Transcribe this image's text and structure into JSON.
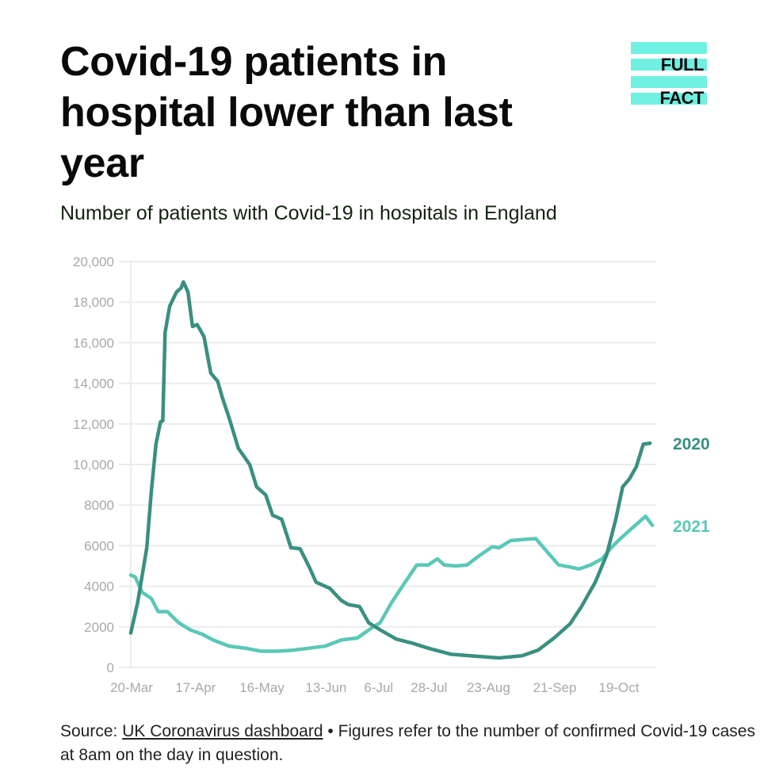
{
  "header": {
    "title": "Covid-19 patients in hospital lower than last year",
    "subtitle": "Number of patients with Covid-19 in hospitals in England"
  },
  "logo": {
    "line1": "FULL",
    "line2": "FACT",
    "color": "#6ff0e1"
  },
  "footer": {
    "source_prefix": "Source: ",
    "source_link": "UK Coronavirus dashboard",
    "bullet": " • ",
    "note": "Figures refer to the number of confirmed Covid-19 cases at 8am on the day in question."
  },
  "chart_data": {
    "type": "line",
    "title": "Number of patients with Covid-19 in hospitals in England",
    "xlabel": "",
    "ylabel": "",
    "x_unit": "days since 20-Mar",
    "xlim": [
      0,
      228
    ],
    "ylim": [
      0,
      20000
    ],
    "grid": true,
    "legend": "inline-right",
    "yticks": [
      0,
      2000,
      4000,
      6000,
      8000,
      10000,
      12000,
      14000,
      16000,
      18000,
      20000
    ],
    "ytick_labels": [
      "0",
      "2000",
      "4000",
      "6000",
      "8000",
      "10,000",
      "12,000",
      "14,000",
      "16,000",
      "18,000",
      "20,000"
    ],
    "xticks": [
      0,
      28,
      57,
      85,
      108,
      130,
      156,
      185,
      213
    ],
    "xtick_labels": [
      "20-Mar",
      "17-Apr",
      "16-May",
      "13-Jun",
      "6-Jul",
      "28-Jul",
      "23-Aug",
      "21-Sep",
      "19-Oct"
    ],
    "series": [
      {
        "name": "2020",
        "color": "#3a8f80",
        "points": [
          [
            0,
            1700
          ],
          [
            3,
            3200
          ],
          [
            7,
            5900
          ],
          [
            9,
            8700
          ],
          [
            11,
            11000
          ],
          [
            13,
            12100
          ],
          [
            14,
            12150
          ],
          [
            15,
            16500
          ],
          [
            17,
            17800
          ],
          [
            20,
            18500
          ],
          [
            22,
            18700
          ],
          [
            23,
            19000
          ],
          [
            25,
            18500
          ],
          [
            27,
            16800
          ],
          [
            29,
            16900
          ],
          [
            32,
            16300
          ],
          [
            35,
            14500
          ],
          [
            38,
            14100
          ],
          [
            40,
            13300
          ],
          [
            43,
            12300
          ],
          [
            47,
            10800
          ],
          [
            52,
            10000
          ],
          [
            55,
            8900
          ],
          [
            59,
            8500
          ],
          [
            62,
            7500
          ],
          [
            66,
            7300
          ],
          [
            70,
            5900
          ],
          [
            74,
            5850
          ],
          [
            78,
            4950
          ],
          [
            81,
            4200
          ],
          [
            87,
            3900
          ],
          [
            92,
            3300
          ],
          [
            95,
            3100
          ],
          [
            100,
            3000
          ],
          [
            104,
            2200
          ],
          [
            109,
            1850
          ],
          [
            116,
            1400
          ],
          [
            123,
            1200
          ],
          [
            130,
            950
          ],
          [
            140,
            650
          ],
          [
            151,
            550
          ],
          [
            161,
            470
          ],
          [
            171,
            580
          ],
          [
            178,
            850
          ],
          [
            185,
            1450
          ],
          [
            192,
            2150
          ],
          [
            197,
            3000
          ],
          [
            203,
            4200
          ],
          [
            208,
            5550
          ],
          [
            212,
            7300
          ],
          [
            215,
            8900
          ],
          [
            218,
            9300
          ],
          [
            221,
            9900
          ],
          [
            224,
            11000
          ],
          [
            227,
            11050
          ]
        ]
      },
      {
        "name": "2021",
        "color": "#5ac8b6",
        "points": [
          [
            0,
            4550
          ],
          [
            2,
            4450
          ],
          [
            5,
            3700
          ],
          [
            9,
            3400
          ],
          [
            12,
            2750
          ],
          [
            16,
            2750
          ],
          [
            21,
            2200
          ],
          [
            26,
            1850
          ],
          [
            31,
            1650
          ],
          [
            36,
            1350
          ],
          [
            43,
            1050
          ],
          [
            50,
            950
          ],
          [
            57,
            800
          ],
          [
            64,
            800
          ],
          [
            71,
            850
          ],
          [
            78,
            950
          ],
          [
            85,
            1050
          ],
          [
            92,
            1350
          ],
          [
            99,
            1450
          ],
          [
            106,
            2000
          ],
          [
            109,
            2200
          ],
          [
            114,
            3200
          ],
          [
            119,
            4050
          ],
          [
            125,
            5050
          ],
          [
            130,
            5050
          ],
          [
            134,
            5350
          ],
          [
            137,
            5050
          ],
          [
            142,
            5000
          ],
          [
            147,
            5050
          ],
          [
            151,
            5400
          ],
          [
            158,
            5950
          ],
          [
            161,
            5900
          ],
          [
            166,
            6250
          ],
          [
            171,
            6300
          ],
          [
            177,
            6350
          ],
          [
            182,
            5700
          ],
          [
            187,
            5050
          ],
          [
            192,
            4950
          ],
          [
            196,
            4850
          ],
          [
            201,
            5050
          ],
          [
            206,
            5350
          ],
          [
            210,
            5900
          ],
          [
            214,
            6350
          ],
          [
            220,
            6950
          ],
          [
            225,
            7450
          ],
          [
            228,
            7000
          ]
        ]
      }
    ]
  }
}
